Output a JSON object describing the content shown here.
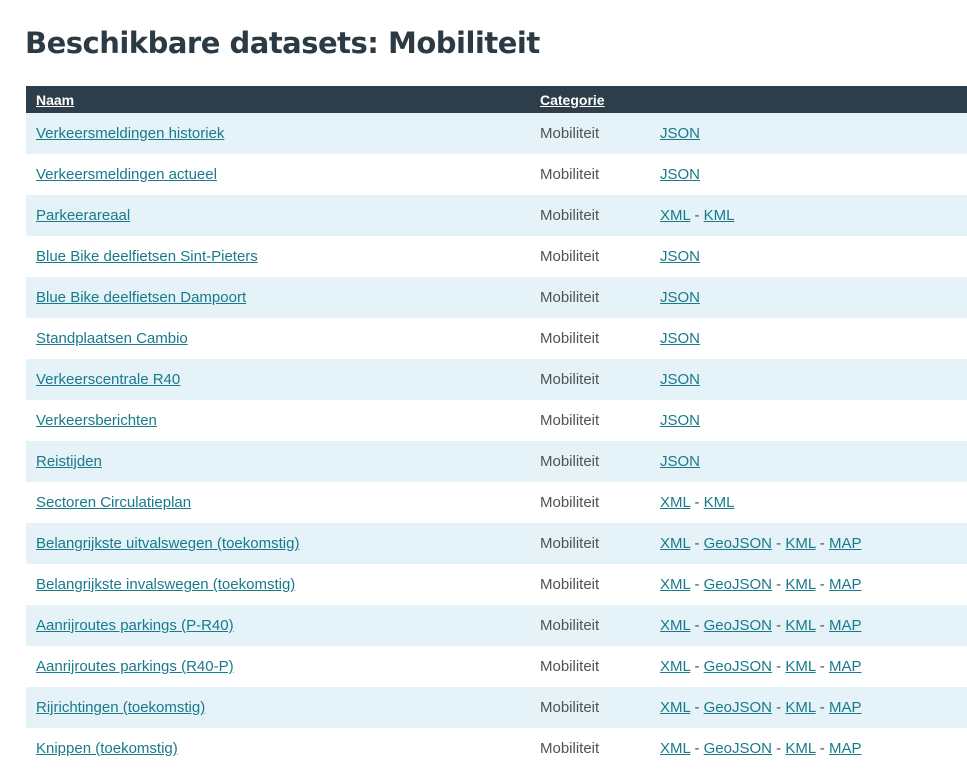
{
  "page": {
    "title": "Beschikbare datasets: Mobiliteit"
  },
  "colors": {
    "header_bg": "#2d3e4a",
    "link": "#187a8b",
    "row_alt_bg": "#e5f2f8",
    "title": "#2c3a44",
    "category_text": "#4d5357"
  },
  "format_separator": "-",
  "table": {
    "headers": [
      "Naam",
      "Categorie",
      ""
    ],
    "rows": [
      {
        "name": "Verkeersmeldingen historiek",
        "category": "Mobiliteit",
        "formats": [
          "JSON"
        ]
      },
      {
        "name": "Verkeersmeldingen actueel",
        "category": "Mobiliteit",
        "formats": [
          "JSON"
        ]
      },
      {
        "name": "Parkeerareaal",
        "category": "Mobiliteit",
        "formats": [
          "XML",
          "KML"
        ]
      },
      {
        "name": "Blue Bike deelfietsen Sint-Pieters",
        "category": "Mobiliteit",
        "formats": [
          "JSON"
        ]
      },
      {
        "name": "Blue Bike deelfietsen Dampoort",
        "category": "Mobiliteit",
        "formats": [
          "JSON"
        ]
      },
      {
        "name": "Standplaatsen Cambio",
        "category": "Mobiliteit",
        "formats": [
          "JSON"
        ]
      },
      {
        "name": "Verkeerscentrale R40",
        "category": "Mobiliteit",
        "formats": [
          "JSON"
        ]
      },
      {
        "name": "Verkeersberichten",
        "category": "Mobiliteit",
        "formats": [
          "JSON"
        ]
      },
      {
        "name": "Reistijden",
        "category": "Mobiliteit",
        "formats": [
          "JSON"
        ]
      },
      {
        "name": "Sectoren Circulatieplan",
        "category": "Mobiliteit",
        "formats": [
          "XML",
          "KML"
        ]
      },
      {
        "name": "Belangrijkste uitvalswegen (toekomstig)",
        "category": "Mobiliteit",
        "formats": [
          "XML",
          "GeoJSON",
          "KML",
          "MAP"
        ]
      },
      {
        "name": "Belangrijkste invalswegen (toekomstig)",
        "category": "Mobiliteit",
        "formats": [
          "XML",
          "GeoJSON",
          "KML",
          "MAP"
        ]
      },
      {
        "name": "Aanrijroutes parkings (P-R40)",
        "category": "Mobiliteit",
        "formats": [
          "XML",
          "GeoJSON",
          "KML",
          "MAP"
        ]
      },
      {
        "name": "Aanrijroutes parkings (R40-P)",
        "category": "Mobiliteit",
        "formats": [
          "XML",
          "GeoJSON",
          "KML",
          "MAP"
        ]
      },
      {
        "name": "Rijrichtingen (toekomstig)",
        "category": "Mobiliteit",
        "formats": [
          "XML",
          "GeoJSON",
          "KML",
          "MAP"
        ]
      },
      {
        "name": "Knippen (toekomstig)",
        "category": "Mobiliteit",
        "formats": [
          "XML",
          "GeoJSON",
          "KML",
          "MAP"
        ]
      }
    ]
  }
}
